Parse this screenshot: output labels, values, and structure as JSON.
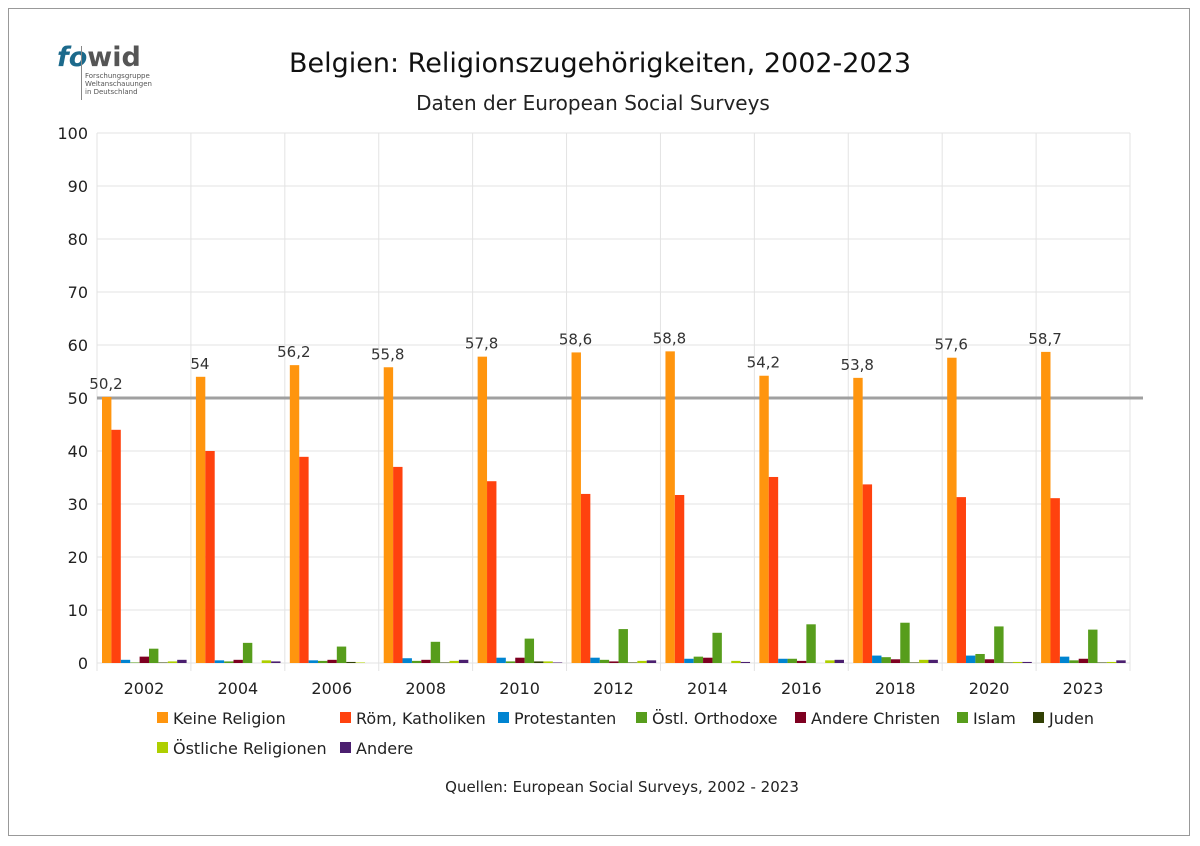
{
  "logo": {
    "brand": "fowid",
    "line1": "Forschungsgruppe",
    "line2": "Weltanschauungen",
    "line3": "in Deutschland"
  },
  "chart_data": {
    "type": "bar",
    "title": "Belgien: Religionszugehörigkeiten, 2002-2023",
    "subtitle": "Daten der European Social Surveys",
    "source": "Quellen: European Social Surveys, 2002 - 2023",
    "xlabel": "",
    "ylabel": "",
    "ylim": [
      0,
      100
    ],
    "yticks": [
      0,
      10,
      20,
      30,
      40,
      50,
      60,
      70,
      80,
      90,
      100
    ],
    "reference_line": 50,
    "grid": true,
    "legend_position": "bottom",
    "categories": [
      "2002",
      "2004",
      "2006",
      "2008",
      "2010",
      "2012",
      "2014",
      "2016",
      "2018",
      "2020",
      "2023"
    ],
    "series": [
      {
        "name": "Keine Religion",
        "color": "#FF950E",
        "values": [
          50.2,
          54,
          56.2,
          55.8,
          57.8,
          58.6,
          58.8,
          54.2,
          53.8,
          57.6,
          58.7
        ],
        "labels": [
          "50,2",
          "54",
          "56,2",
          "55,8",
          "57,8",
          "58,6",
          "58,8",
          "54,2",
          "53,8",
          "57,6",
          "58,7"
        ]
      },
      {
        "name": "Röm, Katholiken",
        "color": "#FF420E",
        "values": [
          44.0,
          40.0,
          38.9,
          37.0,
          34.3,
          31.9,
          31.7,
          35.1,
          33.7,
          31.3,
          31.1
        ]
      },
      {
        "name": "Protestanten",
        "color": "#0084D1",
        "values": [
          0.6,
          0.5,
          0.5,
          0.9,
          1.0,
          1.0,
          0.8,
          0.8,
          1.4,
          1.4,
          1.2
        ]
      },
      {
        "name": "Östl. Orthodoxe",
        "color": "#579D1C",
        "values": [
          0.1,
          0.3,
          0.4,
          0.4,
          0.3,
          0.6,
          1.2,
          0.8,
          1.1,
          1.7,
          0.5
        ]
      },
      {
        "name": "Andere Christen",
        "color": "#7E0021",
        "values": [
          1.2,
          0.6,
          0.6,
          0.6,
          1.0,
          0.3,
          1.0,
          0.4,
          0.7,
          0.7,
          0.8
        ]
      },
      {
        "name": "Islam",
        "color": "#579D1C",
        "values": [
          2.7,
          3.8,
          3.1,
          4.0,
          4.6,
          6.4,
          5.7,
          7.3,
          7.6,
          6.9,
          6.3
        ]
      },
      {
        "name": "Juden",
        "color": "#314004",
        "values": [
          0.1,
          0,
          0.2,
          0.1,
          0.3,
          0.1,
          0,
          0,
          0.1,
          0.1,
          0.1
        ]
      },
      {
        "name": "Östliche Religionen",
        "color": "#AECF00",
        "values": [
          0.3,
          0.5,
          0.1,
          0.4,
          0.3,
          0.4,
          0.4,
          0.5,
          0.6,
          0.2,
          0.2
        ]
      },
      {
        "name": "Andere",
        "color": "#4B1F6F",
        "values": [
          0.6,
          0.3,
          0,
          0.6,
          0.1,
          0.5,
          0.2,
          0.6,
          0.6,
          0.2,
          0.5
        ]
      }
    ]
  }
}
